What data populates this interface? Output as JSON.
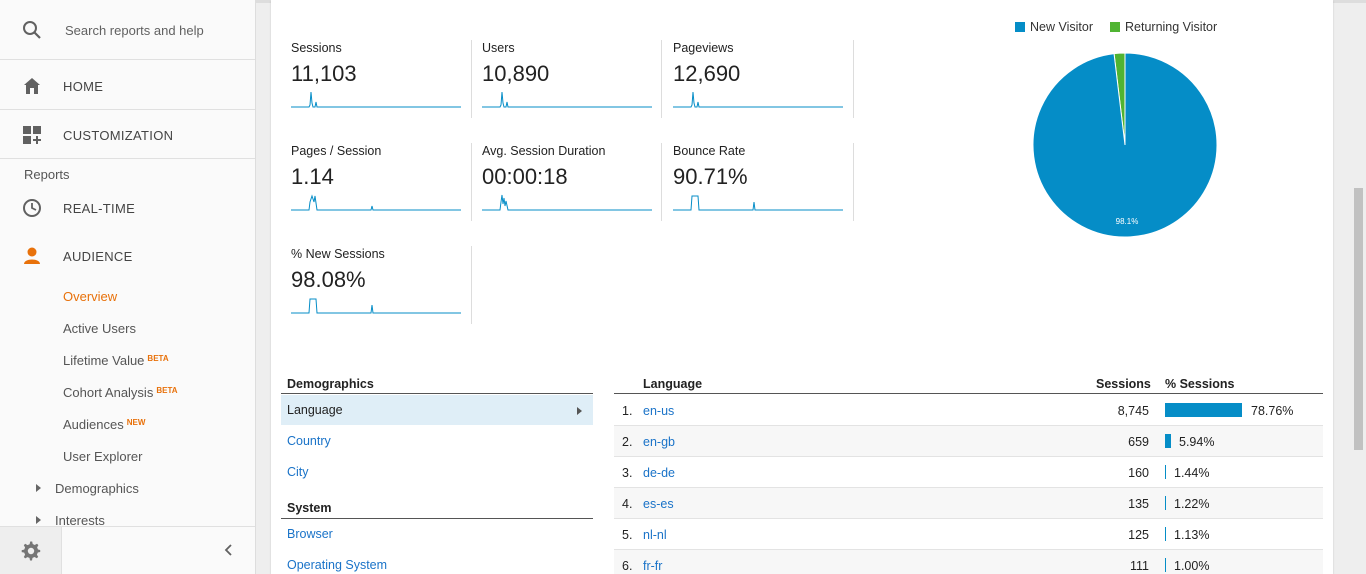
{
  "sidebar": {
    "search_label": "Search reports and help",
    "home": "HOME",
    "customization": "CUSTOMIZATION",
    "reports_section": "Reports",
    "realtime": "REAL-TIME",
    "audience": "AUDIENCE",
    "audience_items": [
      {
        "label": "Overview",
        "active": true
      },
      {
        "label": "Active Users"
      },
      {
        "label": "Lifetime Value",
        "badge": "BETA"
      },
      {
        "label": "Cohort Analysis",
        "badge": "BETA"
      },
      {
        "label": "Audiences",
        "badge": "NEW"
      },
      {
        "label": "User Explorer"
      }
    ],
    "tree_items": [
      "Demographics",
      "Interests"
    ],
    "accent_color": "#e8710a"
  },
  "metrics": [
    {
      "label": "Sessions",
      "value": "11,103"
    },
    {
      "label": "Users",
      "value": "10,890"
    },
    {
      "label": "Pageviews",
      "value": "12,690"
    },
    {
      "label": "Pages / Session",
      "value": "1.14"
    },
    {
      "label": "Avg. Session Duration",
      "value": "00:00:18"
    },
    {
      "label": "Bounce Rate",
      "value": "90.71%"
    },
    {
      "label": "% New Sessions",
      "value": "98.08%"
    }
  ],
  "chart_data": {
    "type": "pie",
    "legend": [
      "New Visitor",
      "Returning Visitor"
    ],
    "values": [
      98.1,
      1.9
    ],
    "colors": [
      "#058dc7",
      "#50b432"
    ],
    "slice_label": "98.1%",
    "legend_position": "top"
  },
  "demographics": {
    "heading": "Demographics",
    "items": [
      "Language",
      "Country",
      "City"
    ],
    "system_heading": "System",
    "system_items": [
      "Browser",
      "Operating System"
    ]
  },
  "language_table": {
    "col_language": "Language",
    "col_sessions": "Sessions",
    "col_pct": "% Sessions",
    "rows": [
      {
        "idx": "1.",
        "lang": "en-us",
        "sessions": "8,745",
        "pct": "78.76%",
        "pct_value": 78.76
      },
      {
        "idx": "2.",
        "lang": "en-gb",
        "sessions": "659",
        "pct": "5.94%",
        "pct_value": 5.94
      },
      {
        "idx": "3.",
        "lang": "de-de",
        "sessions": "160",
        "pct": "1.44%",
        "pct_value": 1.44
      },
      {
        "idx": "4.",
        "lang": "es-es",
        "sessions": "135",
        "pct": "1.22%",
        "pct_value": 1.22
      },
      {
        "idx": "5.",
        "lang": "nl-nl",
        "sessions": "125",
        "pct": "1.13%",
        "pct_value": 1.13
      },
      {
        "idx": "6.",
        "lang": "fr-fr",
        "sessions": "111",
        "pct": "1.00%",
        "pct_value": 1.0
      }
    ]
  }
}
